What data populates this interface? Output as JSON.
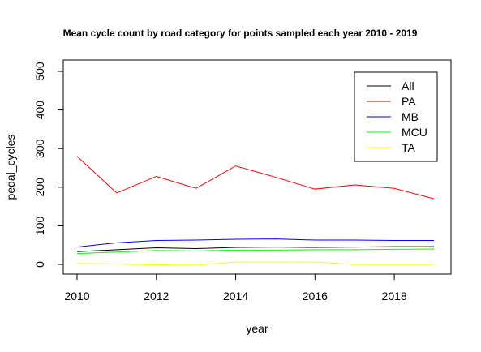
{
  "chart_data": {
    "type": "line",
    "title": "Mean cycle count by road category for points sampled each year 2010 - 2019",
    "xlabel": "year",
    "ylabel": "pedal_cycles",
    "x": [
      2010,
      2011,
      2012,
      2013,
      2014,
      2015,
      2016,
      2017,
      2018,
      2019
    ],
    "xlim": [
      2010,
      2019
    ],
    "ylim": [
      0,
      500
    ],
    "x_ticks": [
      "2010",
      "2012",
      "2014",
      "2016",
      "2018"
    ],
    "y_ticks": [
      "0",
      "100",
      "200",
      "300",
      "400",
      "500"
    ],
    "grid": false,
    "legend_position": "top-right",
    "series": [
      {
        "name": "All",
        "color": "#000000",
        "values": [
          33,
          38,
          43,
          41,
          44,
          45,
          44,
          45,
          46,
          46
        ]
      },
      {
        "name": "PA",
        "color": "#ff0000",
        "values": [
          280,
          185,
          228,
          197,
          255,
          226,
          195,
          206,
          197,
          170
        ]
      },
      {
        "name": "MB",
        "color": "#0000ff",
        "values": [
          45,
          56,
          62,
          63,
          65,
          66,
          63,
          63,
          62,
          62
        ]
      },
      {
        "name": "MCU",
        "color": "#00ff00",
        "values": [
          28,
          32,
          36,
          35,
          37,
          37,
          38,
          38,
          39,
          40
        ]
      },
      {
        "name": "TA",
        "color": "#ffff00",
        "values": [
          3,
          1,
          -1,
          -2,
          6,
          6,
          6,
          0,
          0,
          0
        ]
      }
    ]
  }
}
